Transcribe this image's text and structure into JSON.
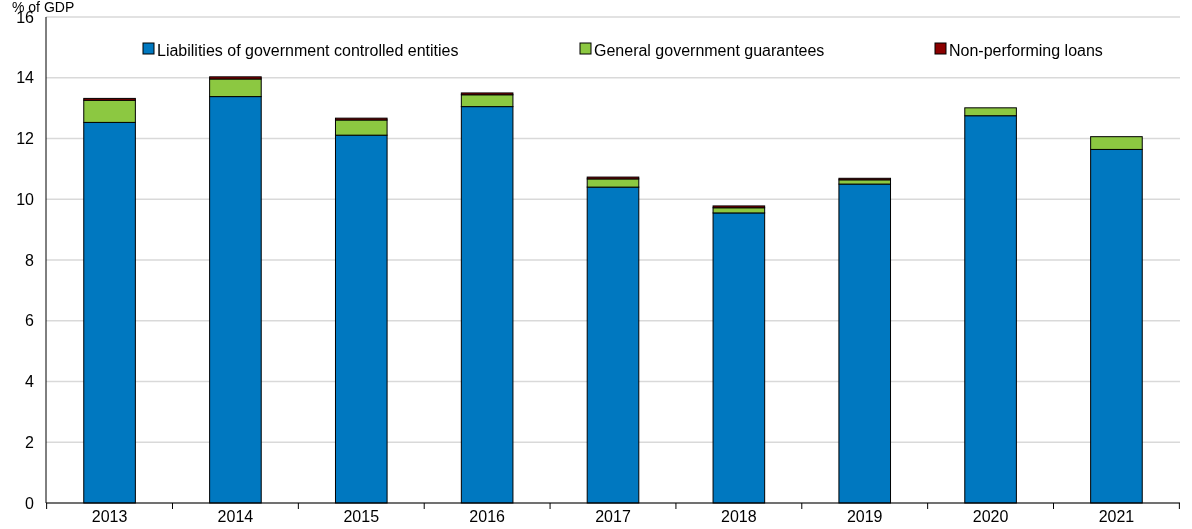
{
  "chart_data": {
    "type": "bar",
    "stacked": true,
    "ylabel": "% of GDP",
    "categories": [
      "2013",
      "2014",
      "2015",
      "2016",
      "2017",
      "2018",
      "2019",
      "2020",
      "2021"
    ],
    "series": [
      {
        "name": "Liabilities of  government controlled entities",
        "color": "#0078c0",
        "values": [
          12.53,
          13.38,
          12.11,
          13.05,
          10.4,
          9.55,
          10.5,
          12.75,
          11.64
        ]
      },
      {
        "name": "General government guarantees",
        "color": "#8cc841",
        "values": [
          0.73,
          0.58,
          0.5,
          0.39,
          0.27,
          0.17,
          0.14,
          0.26,
          0.42
        ]
      },
      {
        "name": "Non-performing loans",
        "color": "#8b0000",
        "values": [
          0.06,
          0.07,
          0.06,
          0.06,
          0.06,
          0.06,
          0.05,
          0,
          0
        ]
      }
    ],
    "ylim": [
      0,
      16
    ],
    "yticks": [
      0,
      2,
      4,
      6,
      8,
      10,
      12,
      14,
      16
    ],
    "grid": "y",
    "legend": "top"
  }
}
